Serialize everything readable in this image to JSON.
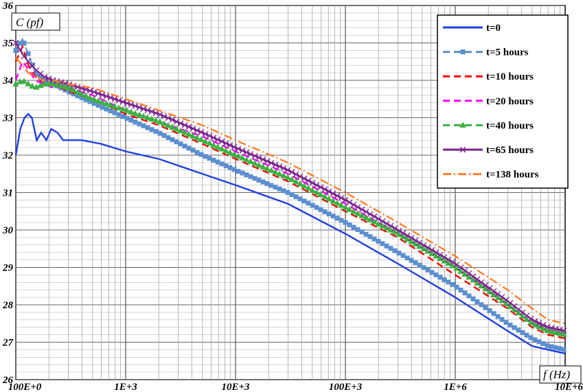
{
  "chart_data": {
    "type": "line",
    "title": "",
    "xlabel": "f (Hz)",
    "ylabel": "C (pf)",
    "xscale": "log",
    "xlim": [
      100,
      10000000
    ],
    "ylim": [
      26,
      36
    ],
    "grid": true,
    "legend_position": "top-right",
    "x_tick_labels": [
      "100E+0",
      "1E+3",
      "10E+3",
      "100E+3",
      "1E+6",
      "10E+6"
    ],
    "y_tick_labels": [
      "26",
      "27",
      "28",
      "29",
      "30",
      "31",
      "32",
      "33",
      "34",
      "35",
      "36"
    ],
    "series": [
      {
        "name": "t=0",
        "color": "#1f3fe0",
        "style": "solid",
        "marker": "none",
        "x": [
          100,
          110,
          120,
          130,
          140,
          155,
          170,
          190,
          210,
          240,
          270,
          300,
          400,
          600,
          1000,
          2000,
          5000,
          10000,
          30000,
          100000,
          300000,
          1000000,
          3000000,
          5000000,
          7000000,
          10000000
        ],
        "y": [
          32.0,
          32.7,
          33.0,
          33.1,
          33.0,
          32.4,
          32.6,
          32.4,
          32.7,
          32.6,
          32.4,
          32.4,
          32.4,
          32.3,
          32.1,
          31.9,
          31.5,
          31.2,
          30.7,
          29.9,
          29.1,
          28.2,
          27.3,
          26.9,
          26.8,
          26.7
        ]
      },
      {
        "name": "t=5 hours",
        "color": "#5b8fd0",
        "style": "dashed",
        "marker": "square",
        "x": [
          100,
          115,
          130,
          150,
          180,
          220,
          300,
          500,
          1000,
          2000,
          5000,
          10000,
          30000,
          100000,
          300000,
          1000000,
          3000000,
          5000000,
          7000000,
          10000000
        ],
        "y": [
          34.8,
          35.1,
          34.7,
          34.2,
          34.0,
          33.9,
          33.7,
          33.4,
          33.0,
          32.6,
          32.0,
          31.6,
          31.0,
          30.2,
          29.4,
          28.5,
          27.5,
          27.1,
          26.9,
          26.8
        ]
      },
      {
        "name": "t=10 hours",
        "color": "#ff0000",
        "style": "dashed",
        "marker": "none",
        "x": [
          100,
          115,
          130,
          150,
          180,
          220,
          300,
          500,
          1000,
          2000,
          5000,
          10000,
          30000,
          100000,
          300000,
          1000000,
          3000000,
          5000000,
          7000000,
          10000000
        ],
        "y": [
          34.5,
          34.9,
          34.4,
          34.1,
          33.9,
          33.9,
          33.7,
          33.5,
          33.1,
          32.8,
          32.3,
          31.9,
          31.3,
          30.5,
          29.8,
          28.8,
          27.9,
          27.4,
          27.2,
          27.1
        ]
      },
      {
        "name": "t=20 hours",
        "color": "#ff00ff",
        "style": "dashed",
        "marker": "none",
        "x": [
          100,
          115,
          130,
          150,
          180,
          220,
          300,
          500,
          1000,
          2000,
          5000,
          10000,
          30000,
          100000,
          300000,
          1000000,
          3000000,
          5000000,
          7000000,
          10000000
        ],
        "y": [
          34.0,
          34.5,
          34.3,
          34.0,
          33.9,
          33.8,
          33.8,
          33.6,
          33.2,
          32.9,
          32.5,
          32.1,
          31.5,
          30.7,
          29.9,
          29.0,
          28.1,
          27.6,
          27.3,
          27.2
        ]
      },
      {
        "name": "t=40 hours",
        "color": "#3cb043",
        "style": "dashed",
        "marker": "triangle",
        "x": [
          100,
          115,
          130,
          150,
          180,
          220,
          300,
          500,
          1000,
          2000,
          5000,
          10000,
          30000,
          100000,
          300000,
          1000000,
          3000000,
          5000000,
          7000000,
          10000000
        ],
        "y": [
          33.9,
          34.0,
          33.9,
          33.8,
          33.9,
          33.9,
          33.8,
          33.5,
          33.2,
          32.9,
          32.4,
          32.0,
          31.4,
          30.6,
          29.9,
          29.0,
          28.0,
          27.5,
          27.3,
          27.2
        ]
      },
      {
        "name": "t=65 hours",
        "color": "#7a1f8f",
        "style": "solid",
        "marker": "x",
        "x": [
          100,
          115,
          130,
          150,
          180,
          220,
          300,
          500,
          1000,
          2000,
          5000,
          10000,
          30000,
          100000,
          300000,
          1000000,
          3000000,
          5000000,
          7000000,
          10000000
        ],
        "y": [
          35.0,
          34.7,
          34.5,
          34.3,
          34.1,
          34.0,
          33.9,
          33.7,
          33.4,
          33.1,
          32.6,
          32.2,
          31.6,
          30.8,
          30.0,
          29.1,
          28.1,
          27.6,
          27.4,
          27.3
        ]
      },
      {
        "name": "t=138 hours",
        "color": "#ff7f27",
        "style": "dashdot",
        "marker": "none",
        "x": [
          100,
          115,
          130,
          150,
          180,
          220,
          300,
          500,
          1000,
          2000,
          5000,
          10000,
          30000,
          100000,
          300000,
          1000000,
          3000000,
          5000000,
          7000000,
          10000000
        ],
        "y": [
          34.6,
          34.4,
          34.2,
          34.1,
          34.0,
          34.0,
          33.9,
          33.8,
          33.5,
          33.2,
          32.8,
          32.4,
          31.8,
          31.0,
          30.2,
          29.3,
          28.4,
          27.9,
          27.6,
          27.5
        ]
      }
    ]
  }
}
